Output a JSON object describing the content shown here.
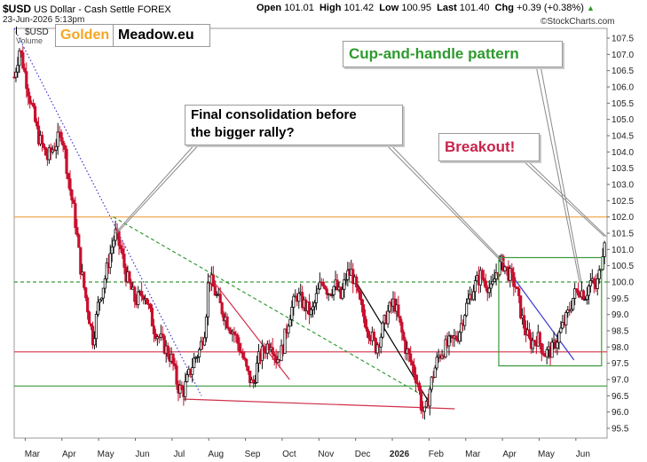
{
  "header": {
    "symbol": "$USD",
    "name": "US Dollar - Cash Settle",
    "exchange": "FOREX",
    "date": "23-Jun-2026 5:13pm",
    "open_label": "Open",
    "open": "101.01",
    "high_label": "High",
    "high": "101.42",
    "low_label": "Low",
    "low": "100.95",
    "last_label": "Last",
    "last": "101.40",
    "chg_label": "Chg",
    "chg": "+0.39 (+0.38%)",
    "watermark": "©StockCharts.com"
  },
  "legend": {
    "price": "$USD",
    "volume": "Volume"
  },
  "logo": {
    "word1": "Golden",
    "word2": "Meadow.eu",
    "word1_color": "#f5a623",
    "word2_color": "#000000"
  },
  "annotations": {
    "final_line1": "Final consolidation before",
    "final_line2": "the bigger rally?",
    "cup": "Cup-and-handle pattern",
    "breakout": "Breakout!",
    "cup_color": "#2e9a2e",
    "breakout_color": "#c8234a"
  },
  "chart_data": {
    "type": "candlestick",
    "title": "$USD US Dollar - Cash Settle FOREX",
    "y_ticks": [
      95.5,
      96.0,
      96.5,
      97.0,
      97.5,
      98.0,
      98.5,
      99.0,
      99.5,
      100.0,
      100.5,
      101.0,
      101.5,
      102.0,
      102.5,
      103.0,
      103.5,
      104.0,
      104.5,
      105.0,
      105.5,
      106.0,
      106.5,
      107.0,
      107.5
    ],
    "ylim": [
      95.2,
      107.8
    ],
    "x_ticks": [
      {
        "label": "Mar",
        "m": 0.0
      },
      {
        "label": "Apr",
        "m": 1.0
      },
      {
        "label": "May",
        "m": 2.0
      },
      {
        "label": "Jun",
        "m": 3.0
      },
      {
        "label": "Jul",
        "m": 4.0
      },
      {
        "label": "Aug",
        "m": 5.0
      },
      {
        "label": "Sep",
        "m": 6.0
      },
      {
        "label": "Oct",
        "m": 7.0
      },
      {
        "label": "Nov",
        "m": 8.0
      },
      {
        "label": "Dec",
        "m": 9.0
      },
      {
        "label": "2026",
        "m": 10.0,
        "bold": true
      },
      {
        "label": "Feb",
        "m": 11.0
      },
      {
        "label": "Mar",
        "m": 12.0
      },
      {
        "label": "Apr",
        "m": 13.0
      },
      {
        "label": "May",
        "m": 14.0
      },
      {
        "label": "Jun",
        "m": 15.0
      }
    ],
    "xlim": [
      -0.3,
      15.85
    ],
    "price_path": [
      [
        -0.3,
        106.3
      ],
      [
        -0.15,
        107.2
      ],
      [
        0.1,
        105.8
      ],
      [
        0.35,
        104.5
      ],
      [
        0.6,
        103.8
      ],
      [
        0.85,
        104.3
      ],
      [
        1.0,
        104.6
      ],
      [
        1.2,
        103.0
      ],
      [
        1.35,
        102.0
      ],
      [
        1.5,
        100.5
      ],
      [
        1.7,
        99.2
      ],
      [
        1.85,
        98.2
      ],
      [
        2.0,
        99.4
      ],
      [
        2.15,
        100.0
      ],
      [
        2.3,
        100.8
      ],
      [
        2.45,
        101.5
      ],
      [
        2.6,
        101.0
      ],
      [
        2.75,
        100.2
      ],
      [
        3.0,
        99.4
      ],
      [
        3.25,
        99.7
      ],
      [
        3.5,
        98.6
      ],
      [
        3.75,
        98.1
      ],
      [
        4.0,
        97.6
      ],
      [
        4.15,
        96.8
      ],
      [
        4.3,
        96.6
      ],
      [
        4.45,
        97.1
      ],
      [
        4.6,
        97.6
      ],
      [
        4.75,
        97.9
      ],
      [
        4.9,
        98.6
      ],
      [
        5.0,
        100.2
      ],
      [
        5.1,
        99.9
      ],
      [
        5.3,
        99.3
      ],
      [
        5.5,
        98.8
      ],
      [
        5.7,
        98.4
      ],
      [
        5.9,
        97.8
      ],
      [
        6.05,
        97.2
      ],
      [
        6.2,
        96.8
      ],
      [
        6.35,
        97.6
      ],
      [
        6.5,
        97.9
      ],
      [
        6.7,
        98.2
      ],
      [
        6.85,
        97.6
      ],
      [
        7.0,
        97.9
      ],
      [
        7.2,
        99.0
      ],
      [
        7.4,
        99.6
      ],
      [
        7.6,
        99.3
      ],
      [
        7.8,
        99.0
      ],
      [
        7.95,
        99.6
      ],
      [
        8.1,
        100.1
      ],
      [
        8.25,
        99.7
      ],
      [
        8.45,
        99.9
      ],
      [
        8.6,
        99.5
      ],
      [
        8.75,
        100.2
      ],
      [
        8.9,
        100.3
      ],
      [
        9.0,
        99.8
      ],
      [
        9.2,
        99.0
      ],
      [
        9.4,
        98.4
      ],
      [
        9.55,
        98.0
      ],
      [
        9.7,
        98.4
      ],
      [
        9.85,
        99.0
      ],
      [
        10.05,
        99.4
      ],
      [
        10.2,
        98.7
      ],
      [
        10.35,
        98.0
      ],
      [
        10.55,
        97.4
      ],
      [
        10.7,
        96.9
      ],
      [
        10.8,
        96.1
      ],
      [
        10.9,
        95.9
      ],
      [
        11.0,
        96.6
      ],
      [
        11.1,
        97.1
      ],
      [
        11.25,
        97.7
      ],
      [
        11.45,
        98.0
      ],
      [
        11.65,
        98.2
      ],
      [
        11.8,
        98.4
      ],
      [
        12.0,
        99.2
      ],
      [
        12.2,
        99.8
      ],
      [
        12.4,
        100.2
      ],
      [
        12.55,
        100.0
      ],
      [
        12.7,
        99.7
      ],
      [
        12.85,
        100.4
      ],
      [
        13.0,
        100.6
      ],
      [
        13.15,
        100.3
      ],
      [
        13.35,
        99.9
      ],
      [
        13.55,
        98.8
      ],
      [
        13.75,
        98.1
      ],
      [
        13.95,
        98.3
      ],
      [
        14.15,
        97.8
      ],
      [
        14.35,
        97.9
      ],
      [
        14.55,
        98.4
      ],
      [
        14.75,
        98.9
      ],
      [
        14.95,
        99.6
      ],
      [
        15.1,
        99.8
      ],
      [
        15.25,
        99.6
      ],
      [
        15.4,
        100.0
      ],
      [
        15.55,
        99.8
      ],
      [
        15.65,
        100.3
      ],
      [
        15.72,
        100.9
      ],
      [
        15.78,
        101.4
      ]
    ],
    "horizontal_lines": [
      {
        "y": 102.0,
        "color": "#f0a040",
        "style": "solid"
      },
      {
        "y": 100.0,
        "color": "#3a9a3a",
        "style": "dashed"
      },
      {
        "y": 97.85,
        "color": "#d0304a",
        "style": "solid"
      },
      {
        "y": 96.8,
        "color": "#3a9a3a",
        "style": "solid"
      }
    ],
    "trend_lines": [
      {
        "x1": -0.3,
        "y1": 107.8,
        "x2": 4.8,
        "y2": 96.5,
        "color": "#3a3ad0",
        "style": "dotted"
      },
      {
        "x1": 2.4,
        "y1": 102.0,
        "x2": 11.0,
        "y2": 96.4,
        "color": "#2e9a2e",
        "style": "dashed"
      },
      {
        "x1": 5.0,
        "y1": 100.2,
        "x2": 7.2,
        "y2": 97.0,
        "color": "#d0304a",
        "style": "solid"
      },
      {
        "x1": 4.3,
        "y1": 96.4,
        "x2": 11.7,
        "y2": 96.1,
        "color": "#d0304a",
        "style": "solid"
      },
      {
        "x1": 8.8,
        "y1": 100.4,
        "x2": 11.0,
        "y2": 96.3,
        "color": "#000000",
        "style": "solid"
      },
      {
        "x1": 13.0,
        "y1": 100.6,
        "x2": 14.95,
        "y2": 97.6,
        "color": "#3a3ad0",
        "style": "solid"
      }
    ],
    "rectangle": {
      "x1": 12.9,
      "y1": 100.75,
      "x2": 15.7,
      "y2": 97.42,
      "color": "#3a9a3a"
    }
  }
}
